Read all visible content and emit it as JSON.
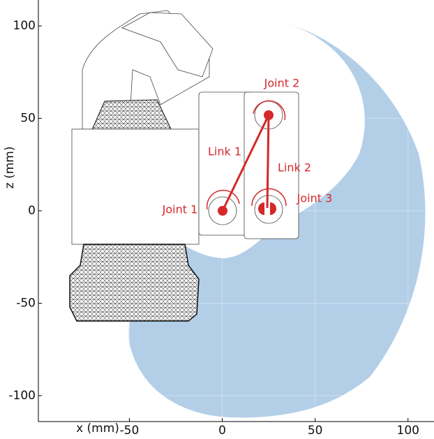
{
  "chart_data": {
    "type": "workspace",
    "xlabel": "x (mm)",
    "ylabel": "z (mm)",
    "xlim": [
      -99,
      114
    ],
    "ylim": [
      -114,
      114
    ],
    "xticks": [
      -50,
      0,
      50,
      100
    ],
    "yticks": [
      -100,
      -50,
      0,
      50,
      100
    ],
    "grid": true,
    "region_color": "#b3cfe8",
    "annotations": [
      "Joint 2",
      "Link 1",
      "Link 2",
      "Joint 1",
      "Joint 3"
    ]
  }
}
